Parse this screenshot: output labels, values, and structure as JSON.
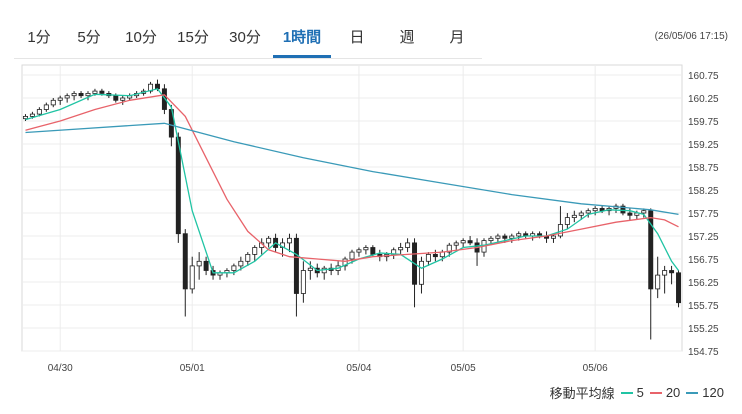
{
  "tabs": [
    {
      "label": "1分",
      "active": false
    },
    {
      "label": "5分",
      "active": false
    },
    {
      "label": "10分",
      "active": false
    },
    {
      "label": "15分",
      "active": false
    },
    {
      "label": "30分",
      "active": false
    },
    {
      "label": "1時間",
      "active": true
    },
    {
      "label": "日",
      "active": false
    },
    {
      "label": "週",
      "active": false
    },
    {
      "label": "月",
      "active": false
    }
  ],
  "timestamp": "(26/05/06 17:15)",
  "legend": {
    "title": "移動平均線",
    "items": [
      {
        "label": "5",
        "color": "#20c4a4"
      },
      {
        "label": "20",
        "color": "#e8636a"
      },
      {
        "label": "120",
        "color": "#3a9ab8"
      }
    ]
  },
  "chart_data": {
    "type": "candlestick",
    "y_ticks": [
      "160.75",
      "160.25",
      "159.75",
      "159.25",
      "158.75",
      "158.25",
      "157.75",
      "157.25",
      "156.75",
      "156.25",
      "155.75",
      "155.25",
      "154.75"
    ],
    "ylim": [
      154.75,
      160.75
    ],
    "x_ticks": [
      {
        "label": "04/30",
        "index": 5
      },
      {
        "label": "05/01",
        "index": 24
      },
      {
        "label": "05/04",
        "index": 48
      },
      {
        "label": "05/05",
        "index": 63
      },
      {
        "label": "05/06",
        "index": 82
      }
    ],
    "n_bars": 95,
    "candles": [
      [
        159.8,
        159.9,
        159.75,
        159.85
      ],
      [
        159.85,
        159.95,
        159.8,
        159.9
      ],
      [
        159.9,
        160.05,
        159.85,
        160.0
      ],
      [
        160.0,
        160.15,
        159.95,
        160.1
      ],
      [
        160.1,
        160.25,
        160.05,
        160.2
      ],
      [
        160.2,
        160.3,
        160.1,
        160.25
      ],
      [
        160.25,
        160.35,
        160.15,
        160.3
      ],
      [
        160.3,
        160.4,
        160.2,
        160.35
      ],
      [
        160.35,
        160.4,
        160.25,
        160.3
      ],
      [
        160.3,
        160.4,
        160.2,
        160.35
      ],
      [
        160.35,
        160.45,
        160.3,
        160.4
      ],
      [
        160.4,
        160.45,
        160.3,
        160.35
      ],
      [
        160.35,
        160.4,
        160.25,
        160.3
      ],
      [
        160.3,
        160.35,
        160.15,
        160.2
      ],
      [
        160.2,
        160.3,
        160.1,
        160.25
      ],
      [
        160.25,
        160.35,
        160.2,
        160.3
      ],
      [
        160.3,
        160.4,
        160.25,
        160.35
      ],
      [
        160.35,
        160.45,
        160.3,
        160.4
      ],
      [
        160.4,
        160.6,
        160.35,
        160.55
      ],
      [
        160.55,
        160.65,
        160.4,
        160.45
      ],
      [
        160.45,
        160.55,
        159.9,
        160.0
      ],
      [
        160.0,
        160.1,
        159.2,
        159.4
      ],
      [
        159.4,
        159.5,
        157.1,
        157.3
      ],
      [
        157.3,
        157.4,
        155.5,
        156.1
      ],
      [
        156.1,
        156.8,
        156.0,
        156.6
      ],
      [
        156.6,
        156.9,
        156.3,
        156.7
      ],
      [
        156.7,
        156.8,
        156.4,
        156.5
      ],
      [
        156.5,
        156.6,
        156.3,
        156.4
      ],
      [
        156.4,
        156.5,
        156.3,
        156.45
      ],
      [
        156.45,
        156.55,
        156.35,
        156.5
      ],
      [
        156.5,
        156.65,
        156.4,
        156.6
      ],
      [
        156.6,
        156.8,
        156.5,
        156.7
      ],
      [
        156.7,
        156.9,
        156.6,
        156.85
      ],
      [
        156.85,
        157.05,
        156.7,
        157.0
      ],
      [
        157.0,
        157.2,
        156.85,
        157.1
      ],
      [
        157.1,
        157.25,
        157.0,
        157.2
      ],
      [
        157.2,
        157.3,
        156.9,
        157.0
      ],
      [
        157.0,
        157.2,
        156.8,
        157.1
      ],
      [
        157.1,
        157.3,
        156.9,
        157.2
      ],
      [
        157.2,
        157.3,
        155.5,
        156.0
      ],
      [
        156.0,
        156.7,
        155.8,
        156.5
      ],
      [
        156.5,
        156.7,
        156.3,
        156.55
      ],
      [
        156.55,
        156.65,
        156.35,
        156.45
      ],
      [
        156.45,
        156.6,
        156.3,
        156.55
      ],
      [
        156.55,
        156.65,
        156.4,
        156.5
      ],
      [
        156.5,
        156.7,
        156.4,
        156.6
      ],
      [
        156.6,
        156.8,
        156.5,
        156.75
      ],
      [
        156.75,
        156.95,
        156.65,
        156.9
      ],
      [
        156.9,
        157.0,
        156.8,
        156.95
      ],
      [
        156.95,
        157.05,
        156.85,
        157.0
      ],
      [
        157.0,
        157.05,
        156.8,
        156.85
      ],
      [
        156.85,
        156.95,
        156.7,
        156.8
      ],
      [
        156.8,
        156.9,
        156.7,
        156.85
      ],
      [
        156.85,
        157.0,
        156.75,
        156.95
      ],
      [
        156.95,
        157.1,
        156.85,
        157.0
      ],
      [
        157.0,
        157.2,
        156.9,
        157.1
      ],
      [
        157.1,
        157.2,
        155.7,
        156.2
      ],
      [
        156.2,
        156.8,
        156.0,
        156.7
      ],
      [
        156.7,
        156.9,
        156.6,
        156.85
      ],
      [
        156.85,
        156.95,
        156.7,
        156.8
      ],
      [
        156.8,
        156.95,
        156.7,
        156.9
      ],
      [
        156.9,
        157.1,
        156.8,
        157.05
      ],
      [
        157.05,
        157.15,
        156.95,
        157.1
      ],
      [
        157.1,
        157.2,
        157.0,
        157.15
      ],
      [
        157.15,
        157.25,
        157.05,
        157.1
      ],
      [
        157.1,
        157.2,
        156.6,
        156.9
      ],
      [
        156.9,
        157.2,
        156.8,
        157.15
      ],
      [
        157.15,
        157.25,
        157.05,
        157.2
      ],
      [
        157.2,
        157.3,
        157.1,
        157.25
      ],
      [
        157.25,
        157.3,
        157.1,
        157.2
      ],
      [
        157.2,
        157.3,
        157.1,
        157.25
      ],
      [
        157.25,
        157.35,
        157.15,
        157.3
      ],
      [
        157.3,
        157.35,
        157.2,
        157.25
      ],
      [
        157.25,
        157.35,
        157.15,
        157.3
      ],
      [
        157.3,
        157.35,
        157.2,
        157.25
      ],
      [
        157.25,
        157.35,
        157.1,
        157.2
      ],
      [
        157.2,
        157.3,
        157.1,
        157.25
      ],
      [
        157.25,
        157.9,
        157.2,
        157.5
      ],
      [
        157.5,
        157.75,
        157.4,
        157.65
      ],
      [
        157.65,
        157.8,
        157.55,
        157.7
      ],
      [
        157.7,
        157.8,
        157.6,
        157.75
      ],
      [
        157.75,
        157.85,
        157.65,
        157.8
      ],
      [
        157.8,
        157.9,
        157.7,
        157.85
      ],
      [
        157.85,
        157.9,
        157.75,
        157.8
      ],
      [
        157.8,
        157.9,
        157.7,
        157.85
      ],
      [
        157.85,
        157.95,
        157.75,
        157.9
      ],
      [
        157.9,
        157.95,
        157.7,
        157.75
      ],
      [
        157.75,
        157.85,
        157.6,
        157.7
      ],
      [
        157.7,
        157.8,
        157.6,
        157.75
      ],
      [
        157.75,
        157.85,
        157.65,
        157.8
      ],
      [
        157.8,
        157.85,
        155.0,
        156.1
      ],
      [
        156.1,
        156.8,
        155.9,
        156.4
      ],
      [
        156.4,
        156.6,
        156.0,
        156.5
      ],
      [
        156.5,
        156.6,
        156.2,
        156.45
      ],
      [
        156.45,
        156.5,
        155.7,
        155.8
      ]
    ],
    "ma": [
      {
        "name": "5",
        "color": "#20c4a4",
        "points": [
          [
            0,
            159.78
          ],
          [
            5,
            160.0
          ],
          [
            10,
            160.33
          ],
          [
            15,
            160.3
          ],
          [
            19,
            160.45
          ],
          [
            21,
            160.05
          ],
          [
            24,
            157.8
          ],
          [
            27,
            156.45
          ],
          [
            30,
            156.45
          ],
          [
            33,
            156.7
          ],
          [
            36,
            157.1
          ],
          [
            39,
            156.85
          ],
          [
            42,
            156.5
          ],
          [
            45,
            156.55
          ],
          [
            48,
            156.75
          ],
          [
            51,
            156.88
          ],
          [
            54,
            156.85
          ],
          [
            57,
            156.55
          ],
          [
            60,
            156.75
          ],
          [
            63,
            157.0
          ],
          [
            66,
            157.05
          ],
          [
            69,
            157.15
          ],
          [
            72,
            157.25
          ],
          [
            75,
            157.25
          ],
          [
            78,
            157.4
          ],
          [
            81,
            157.72
          ],
          [
            84,
            157.82
          ],
          [
            87,
            157.8
          ],
          [
            89,
            157.72
          ],
          [
            91,
            157.3
          ],
          [
            93,
            156.7
          ],
          [
            94,
            156.5
          ]
        ]
      },
      {
        "name": "20",
        "color": "#e8636a",
        "points": [
          [
            0,
            159.55
          ],
          [
            5,
            159.75
          ],
          [
            10,
            160.0
          ],
          [
            15,
            160.2
          ],
          [
            20,
            160.32
          ],
          [
            23,
            159.85
          ],
          [
            26,
            158.95
          ],
          [
            29,
            158.05
          ],
          [
            32,
            157.35
          ],
          [
            35,
            156.95
          ],
          [
            38,
            156.8
          ],
          [
            42,
            156.75
          ],
          [
            46,
            156.7
          ],
          [
            50,
            156.8
          ],
          [
            55,
            156.85
          ],
          [
            60,
            156.9
          ],
          [
            65,
            157.0
          ],
          [
            70,
            157.15
          ],
          [
            75,
            157.25
          ],
          [
            80,
            157.4
          ],
          [
            85,
            157.55
          ],
          [
            90,
            157.65
          ],
          [
            92,
            157.6
          ],
          [
            94,
            157.45
          ]
        ]
      },
      {
        "name": "120",
        "color": "#3a9ab8",
        "points": [
          [
            0,
            159.5
          ],
          [
            20,
            159.7
          ],
          [
            30,
            159.3
          ],
          [
            40,
            158.95
          ],
          [
            50,
            158.65
          ],
          [
            60,
            158.4
          ],
          [
            70,
            158.15
          ],
          [
            80,
            157.95
          ],
          [
            90,
            157.82
          ],
          [
            94,
            157.72
          ]
        ]
      }
    ]
  }
}
